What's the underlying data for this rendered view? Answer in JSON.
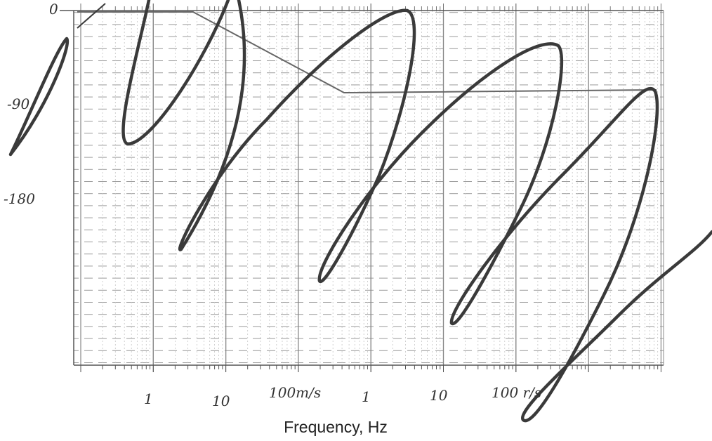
{
  "x_axis": {
    "label": "Frequency, Hz"
  },
  "handwritten": {
    "y_labels": [
      "0",
      "-90",
      "-180"
    ],
    "x_labels": [
      "1",
      "10",
      "100m/s",
      "1",
      "10",
      "100 r/s"
    ]
  }
}
